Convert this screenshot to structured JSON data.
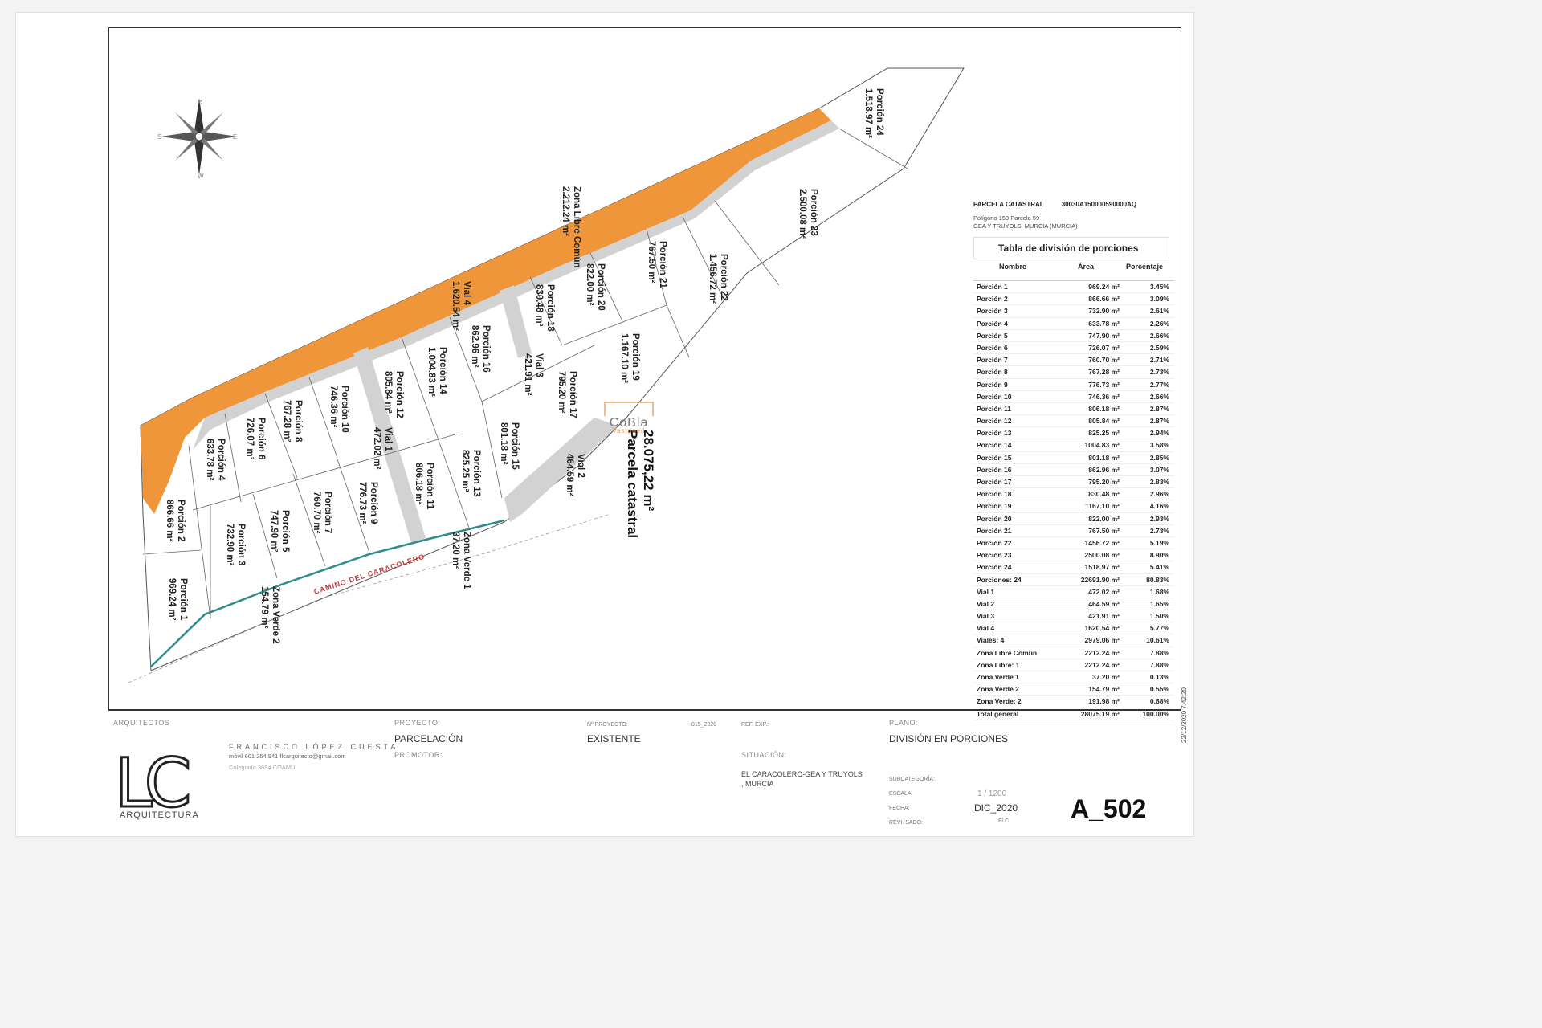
{
  "plan": {
    "cadastral_big": "Parcela catastral",
    "cadastral_area": "28.075,22 m²",
    "road_name": "CAMINO DEL CARACOLERO",
    "compass_letters": [
      "N",
      "S",
      "E",
      "W"
    ],
    "parcels": [
      {
        "name": "Porción 1",
        "area": "969.24 m²"
      },
      {
        "name": "Porción 2",
        "area": "866.66 m²"
      },
      {
        "name": "Porción 3",
        "area": "732.90 m²"
      },
      {
        "name": "Porción 4",
        "area": "633.78 m²"
      },
      {
        "name": "Porción 5",
        "area": "747.90 m²"
      },
      {
        "name": "Porción 6",
        "area": "726.07 m²"
      },
      {
        "name": "Porción 7",
        "area": "760.70 m²"
      },
      {
        "name": "Porción 8",
        "area": "767.28 m²"
      },
      {
        "name": "Porción 9",
        "area": "776.73 m²"
      },
      {
        "name": "Porción 10",
        "area": "746.36 m²"
      },
      {
        "name": "Porción 11",
        "area": "806.18 m²"
      },
      {
        "name": "Porción 12",
        "area": "805.84 m²"
      },
      {
        "name": "Porción 13",
        "area": "825.25 m²"
      },
      {
        "name": "Porción 14",
        "area": "1.004.83 m²"
      },
      {
        "name": "Porción 15",
        "area": "801.18 m²"
      },
      {
        "name": "Porción 16",
        "area": "862.96 m²"
      },
      {
        "name": "Porción 17",
        "area": "795.20 m²"
      },
      {
        "name": "Porción 18",
        "area": "830.48 m²"
      },
      {
        "name": "Porción 19",
        "area": "1.167.10 m²"
      },
      {
        "name": "Porción 20",
        "area": "822.00 m²"
      },
      {
        "name": "Porción 21",
        "area": "767.50 m²"
      },
      {
        "name": "Porción 22",
        "area": "1.456.72 m²"
      },
      {
        "name": "Porción 23",
        "area": "2.500.08 m²"
      },
      {
        "name": "Porción 24",
        "area": "1.518.97 m²"
      },
      {
        "name": "Vial 1",
        "area": "472.02 m²"
      },
      {
        "name": "Vial 2",
        "area": "464.59 m²"
      },
      {
        "name": "Vial 3",
        "area": "421.91 m²"
      },
      {
        "name": "Vial 4",
        "area": "1.620.54 m²"
      },
      {
        "name": "Zona Libre Común",
        "area": "2.212.24 m²"
      },
      {
        "name": "Zona Verde 1",
        "area": "37.20 m²"
      },
      {
        "name": "Zona Verde 2",
        "area": "154.79 m²"
      }
    ],
    "colors": {
      "zona_libre": "#f0963a",
      "vial": "#d2d2d2",
      "zona_verde": "#2e8c8a",
      "lines": "#444444"
    }
  },
  "table": {
    "cadastral_label": "PARCELA CATASTRAL",
    "cadastral_ref": "30030A150000590000AQ",
    "location_line1": "Polígono 150 Parcela 59",
    "location_line2": "GEA Y TRUYOLS, MURCIA (MURCIA)",
    "title": "Tabla de división de porciones",
    "col_name": "Nombre",
    "col_area": "Área",
    "col_pct": "Porcentaje",
    "rows": [
      [
        "Porción 1",
        "969.24 m²",
        "3.45%"
      ],
      [
        "Porción 2",
        "866.66 m²",
        "3.09%"
      ],
      [
        "Porción 3",
        "732.90 m²",
        "2.61%"
      ],
      [
        "Porción 4",
        "633.78 m²",
        "2.26%"
      ],
      [
        "Porción 5",
        "747.90 m²",
        "2.66%"
      ],
      [
        "Porción 6",
        "726.07 m²",
        "2.59%"
      ],
      [
        "Porción 7",
        "760.70 m²",
        "2.71%"
      ],
      [
        "Porción 8",
        "767.28 m²",
        "2.73%"
      ],
      [
        "Porción 9",
        "776.73 m²",
        "2.77%"
      ],
      [
        "Porción 10",
        "746.36 m²",
        "2.66%"
      ],
      [
        "Porción 11",
        "806.18 m²",
        "2.87%"
      ],
      [
        "Porción 12",
        "805.84 m²",
        "2.87%"
      ],
      [
        "Porción 13",
        "825.25 m²",
        "2.94%"
      ],
      [
        "Porción 14",
        "1004.83 m²",
        "3.58%"
      ],
      [
        "Porción 15",
        "801.18 m²",
        "2.85%"
      ],
      [
        "Porción 16",
        "862.96 m²",
        "3.07%"
      ],
      [
        "Porción 17",
        "795.20 m²",
        "2.83%"
      ],
      [
        "Porción 18",
        "830.48 m²",
        "2.96%"
      ],
      [
        "Porción 19",
        "1167.10 m²",
        "4.16%"
      ],
      [
        "Porción 20",
        "822.00 m²",
        "2.93%"
      ],
      [
        "Porción 21",
        "767.50 m²",
        "2.73%"
      ],
      [
        "Porción 22",
        "1456.72 m²",
        "5.19%"
      ],
      [
        "Porción 23",
        "2500.08 m²",
        "8.90%"
      ],
      [
        "Porción 24",
        "1518.97 m²",
        "5.41%"
      ],
      [
        "Porciones: 24",
        "22691.90 m²",
        "80.83%"
      ],
      [
        "Vial 1",
        "472.02 m²",
        "1.68%"
      ],
      [
        "Vial 2",
        "464.59 m²",
        "1.65%"
      ],
      [
        "Vial 3",
        "421.91 m²",
        "1.50%"
      ],
      [
        "Vial 4",
        "1620.54 m²",
        "5.77%"
      ],
      [
        "Viales: 4",
        "2979.06 m²",
        "10.61%"
      ],
      [
        "Zona Libre Común",
        "2212.24 m²",
        "7.88%"
      ],
      [
        "Zona Libre: 1",
        "2212.24 m²",
        "7.88%"
      ],
      [
        "Zona Verde 1",
        "37.20 m²",
        "0.13%"
      ],
      [
        "Zona Verde 2",
        "154.79 m²",
        "0.55%"
      ],
      [
        "Zona Verde: 2",
        "191.98 m²",
        "0.68%"
      ],
      [
        "Total general",
        "28075.19 m²",
        "100.00%"
      ]
    ]
  },
  "title_block": {
    "arquitectos_label": "ARQUITECTOS",
    "architect_name": "FRANCISCO LÓPEZ CUESTA",
    "architect_contact": "móvil 601 254 941    flcarquitecto@gmail.com",
    "architect_college": "Colegiado 3694 COAMU",
    "logo_text": "LC",
    "logo_sub": "ARQUITECTURA",
    "proyecto_label": "PROYECTO:",
    "proyecto_value": "PARCELACIÓN",
    "promotor_label": "PROMOTOR:",
    "n_proyecto_label": "Nº PROYECTO:",
    "n_proyecto_value": "015_2020",
    "existente": "EXISTENTE",
    "ref_label": "REF. EXP.:",
    "situacion_label": "SITUACIÓN:",
    "situacion_value_1": "EL CARACOLERO-GEA Y TRUYOLS",
    "situacion_value_2": ", MURCIA",
    "plano_label": "PLANO:",
    "plano_value": "DIVISIÓN EN PORCIONES",
    "subcategoria_label": "SUBCATEGORÍA:",
    "escala_label": "ESCALA:",
    "escala_value": "1 / 1200",
    "fecha_label": "FECHA:",
    "fecha_value": "DIC_2020",
    "revisado_label": "REVI. SADO:",
    "revisado_value": "FLC",
    "sheet_number": "A_502",
    "side_date": "22/12/2020 7:42:20"
  },
  "watermark": {
    "text": "CoBla",
    "sub": "Vastgoed"
  }
}
